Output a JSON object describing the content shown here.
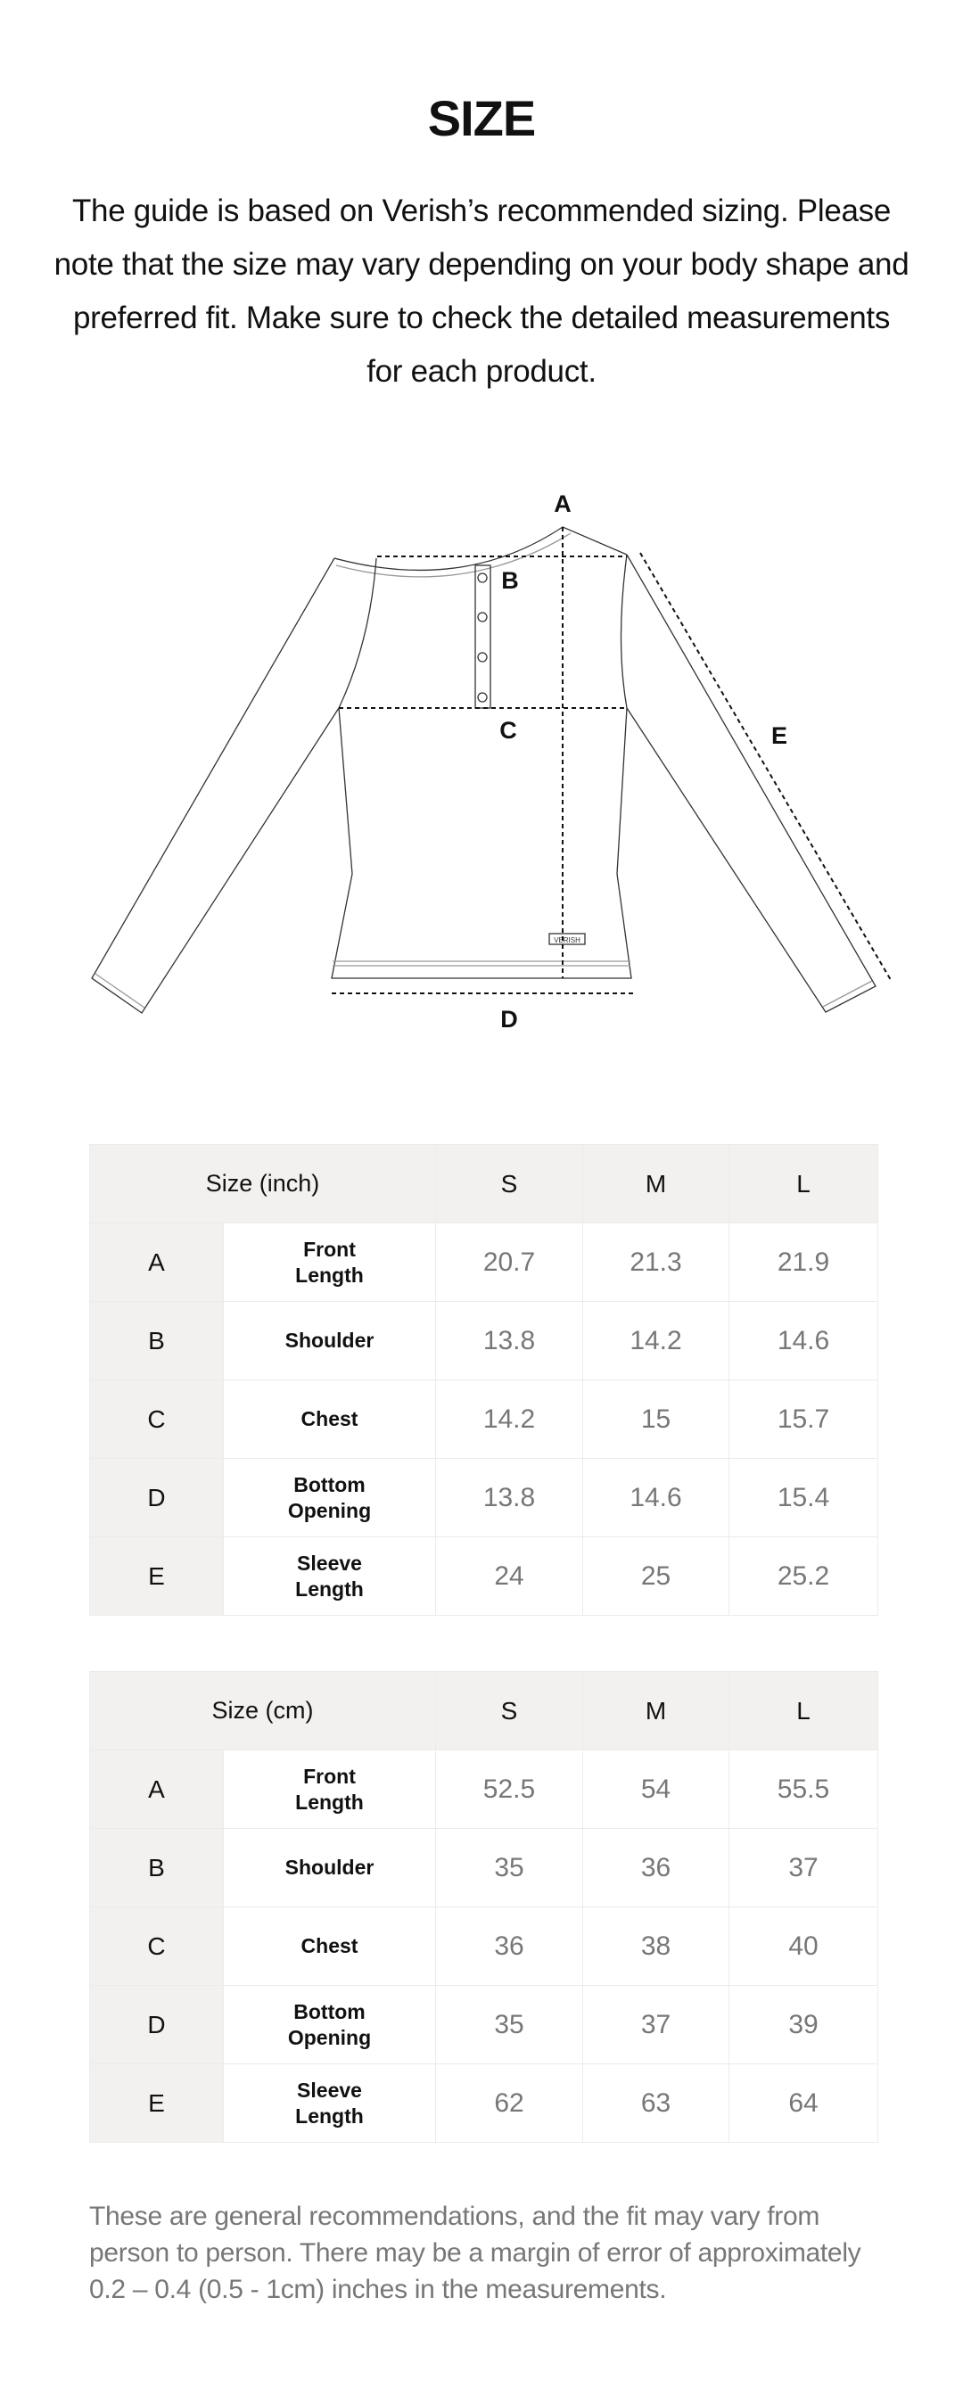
{
  "title": "SIZE",
  "intro": "The guide is based on Verish’s recommended sizing. Please note that the size may vary depending on your body shape and preferred fit. Make sure to check the detailed measurements for each product.",
  "diagram": {
    "labels": {
      "a": "A",
      "b": "B",
      "c": "C",
      "d": "D",
      "e": "E"
    },
    "brand_tag": "VERISH"
  },
  "tables": [
    {
      "header": "Size (inch)",
      "sizes": [
        "S",
        "M",
        "L"
      ],
      "rows": [
        {
          "key": "A",
          "name": "Front Length",
          "values": [
            "20.7",
            "21.3",
            "21.9"
          ]
        },
        {
          "key": "B",
          "name": "Shoulder",
          "values": [
            "13.8",
            "14.2",
            "14.6"
          ]
        },
        {
          "key": "C",
          "name": "Chest",
          "values": [
            "14.2",
            "15",
            "15.7"
          ]
        },
        {
          "key": "D",
          "name": "Bottom Opening",
          "values": [
            "13.8",
            "14.6",
            "15.4"
          ]
        },
        {
          "key": "E",
          "name": "Sleeve Length",
          "values": [
            "24",
            "25",
            "25.2"
          ]
        }
      ]
    },
    {
      "header": "Size (cm)",
      "sizes": [
        "S",
        "M",
        "L"
      ],
      "rows": [
        {
          "key": "A",
          "name": "Front Length",
          "values": [
            "52.5",
            "54",
            "55.5"
          ]
        },
        {
          "key": "B",
          "name": "Shoulder",
          "values": [
            "35",
            "36",
            "37"
          ]
        },
        {
          "key": "C",
          "name": "Chest",
          "values": [
            "36",
            "38",
            "40"
          ]
        },
        {
          "key": "D",
          "name": "Bottom Opening",
          "values": [
            "35",
            "37",
            "39"
          ]
        },
        {
          "key": "E",
          "name": "Sleeve Length",
          "values": [
            "62",
            "63",
            "64"
          ]
        }
      ]
    }
  ],
  "footer": "These are general recommendations, and the fit may vary from person to person. There may be a margin of error of approximately 0.2 – 0.4 (0.5 - 1cm) inches in the measurements.",
  "colors": {
    "header_bg": "#f2f1ef",
    "value_text": "#777777",
    "border": "#ebebeb"
  }
}
